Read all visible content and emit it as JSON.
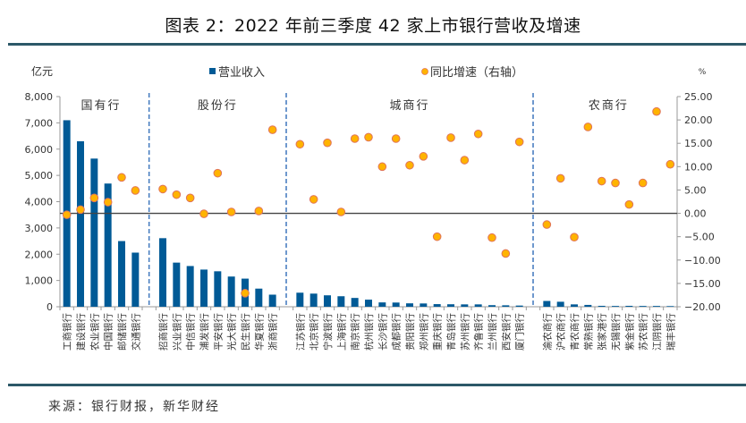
{
  "title": "图表 2：2022 年前三季度 42 家上市银行营收及增速",
  "source": "来源：银行财报，新华财经",
  "chart_data": {
    "type": "bar+scatter",
    "title": "图表 2：2022 年前三季度 42 家上市银行营收及增速",
    "left_axis": {
      "label": "亿元",
      "ylim": [
        0,
        8000
      ],
      "ticks": [
        "0",
        "1,000",
        "2,000",
        "3,000",
        "4,000",
        "5,000",
        "6,000",
        "7,000",
        "8,000"
      ]
    },
    "right_axis": {
      "label": "%",
      "ylim": [
        -20,
        25
      ],
      "ticks": [
        "-20.00",
        "-15.00",
        "-10.00",
        "-5.00",
        "0.00",
        "5.00",
        "10.00",
        "15.00",
        "20.00",
        "25.00"
      ]
    },
    "legend": [
      {
        "name": "营业收入",
        "marker": "square",
        "color": "#005a96"
      },
      {
        "name": "同比增速（右轴）",
        "marker": "circle",
        "color": "#ffb300"
      }
    ],
    "legend_position": "top",
    "groups": [
      {
        "name": "国有行",
        "count": 6
      },
      {
        "name": "股份行",
        "count": 9
      },
      {
        "name": "城商行",
        "count": 17
      },
      {
        "name": "农商行",
        "count": 10
      }
    ],
    "categories": [
      "工商银行",
      "建设银行",
      "农业银行",
      "中国银行",
      "邮储银行",
      "交通银行",
      "招商银行",
      "兴业银行",
      "中信银行",
      "浦发银行",
      "平安银行",
      "光大银行",
      "民生银行",
      "华夏银行",
      "浙商银行",
      "江苏银行",
      "北京银行",
      "宁波银行",
      "上海银行",
      "南京银行",
      "杭州银行",
      "长沙银行",
      "成都银行",
      "贵阳银行",
      "郑州银行",
      "重庆银行",
      "青岛银行",
      "苏州银行",
      "齐鲁银行",
      "兰州银行",
      "西安银行",
      "厦门银行",
      "渝农商行",
      "沪农商行",
      "青农商行",
      "常熟银行",
      "张家港行",
      "无锡银行",
      "紫金银行",
      "苏农银行",
      "江阴银行",
      "瑞丰银行"
    ],
    "series": [
      {
        "name": "营业收入",
        "axis": "left",
        "type": "bar",
        "color": "#005a96",
        "values": [
          7100,
          6300,
          5640,
          4690,
          2500,
          2060,
          2610,
          1680,
          1550,
          1415,
          1350,
          1150,
          1070,
          690,
          460,
          535,
          500,
          435,
          400,
          335,
          270,
          165,
          160,
          130,
          125,
          100,
          95,
          90,
          90,
          60,
          55,
          45,
          220,
          190,
          90,
          70,
          35,
          30,
          35,
          30,
          30,
          25
        ]
      },
      {
        "name": "同比增速（右轴）",
        "axis": "right",
        "type": "scatter",
        "color": "#ffb300",
        "values": [
          -0.3,
          0.8,
          3.3,
          2.4,
          7.7,
          4.9,
          5.2,
          4.0,
          3.3,
          -0.1,
          8.6,
          0.3,
          -17.1,
          0.5,
          17.9,
          14.8,
          3.0,
          15.1,
          0.3,
          16.0,
          16.3,
          10.0,
          16.0,
          10.3,
          12.2,
          -5.0,
          16.2,
          11.4,
          17.0,
          -5.2,
          -8.6,
          15.3,
          -2.4,
          7.5,
          -5.1,
          18.5,
          6.9,
          6.5,
          1.9,
          6.5,
          21.8,
          10.5
        ]
      }
    ],
    "reference_line": {
      "axis": "right",
      "value": 0
    },
    "grid": false
  }
}
